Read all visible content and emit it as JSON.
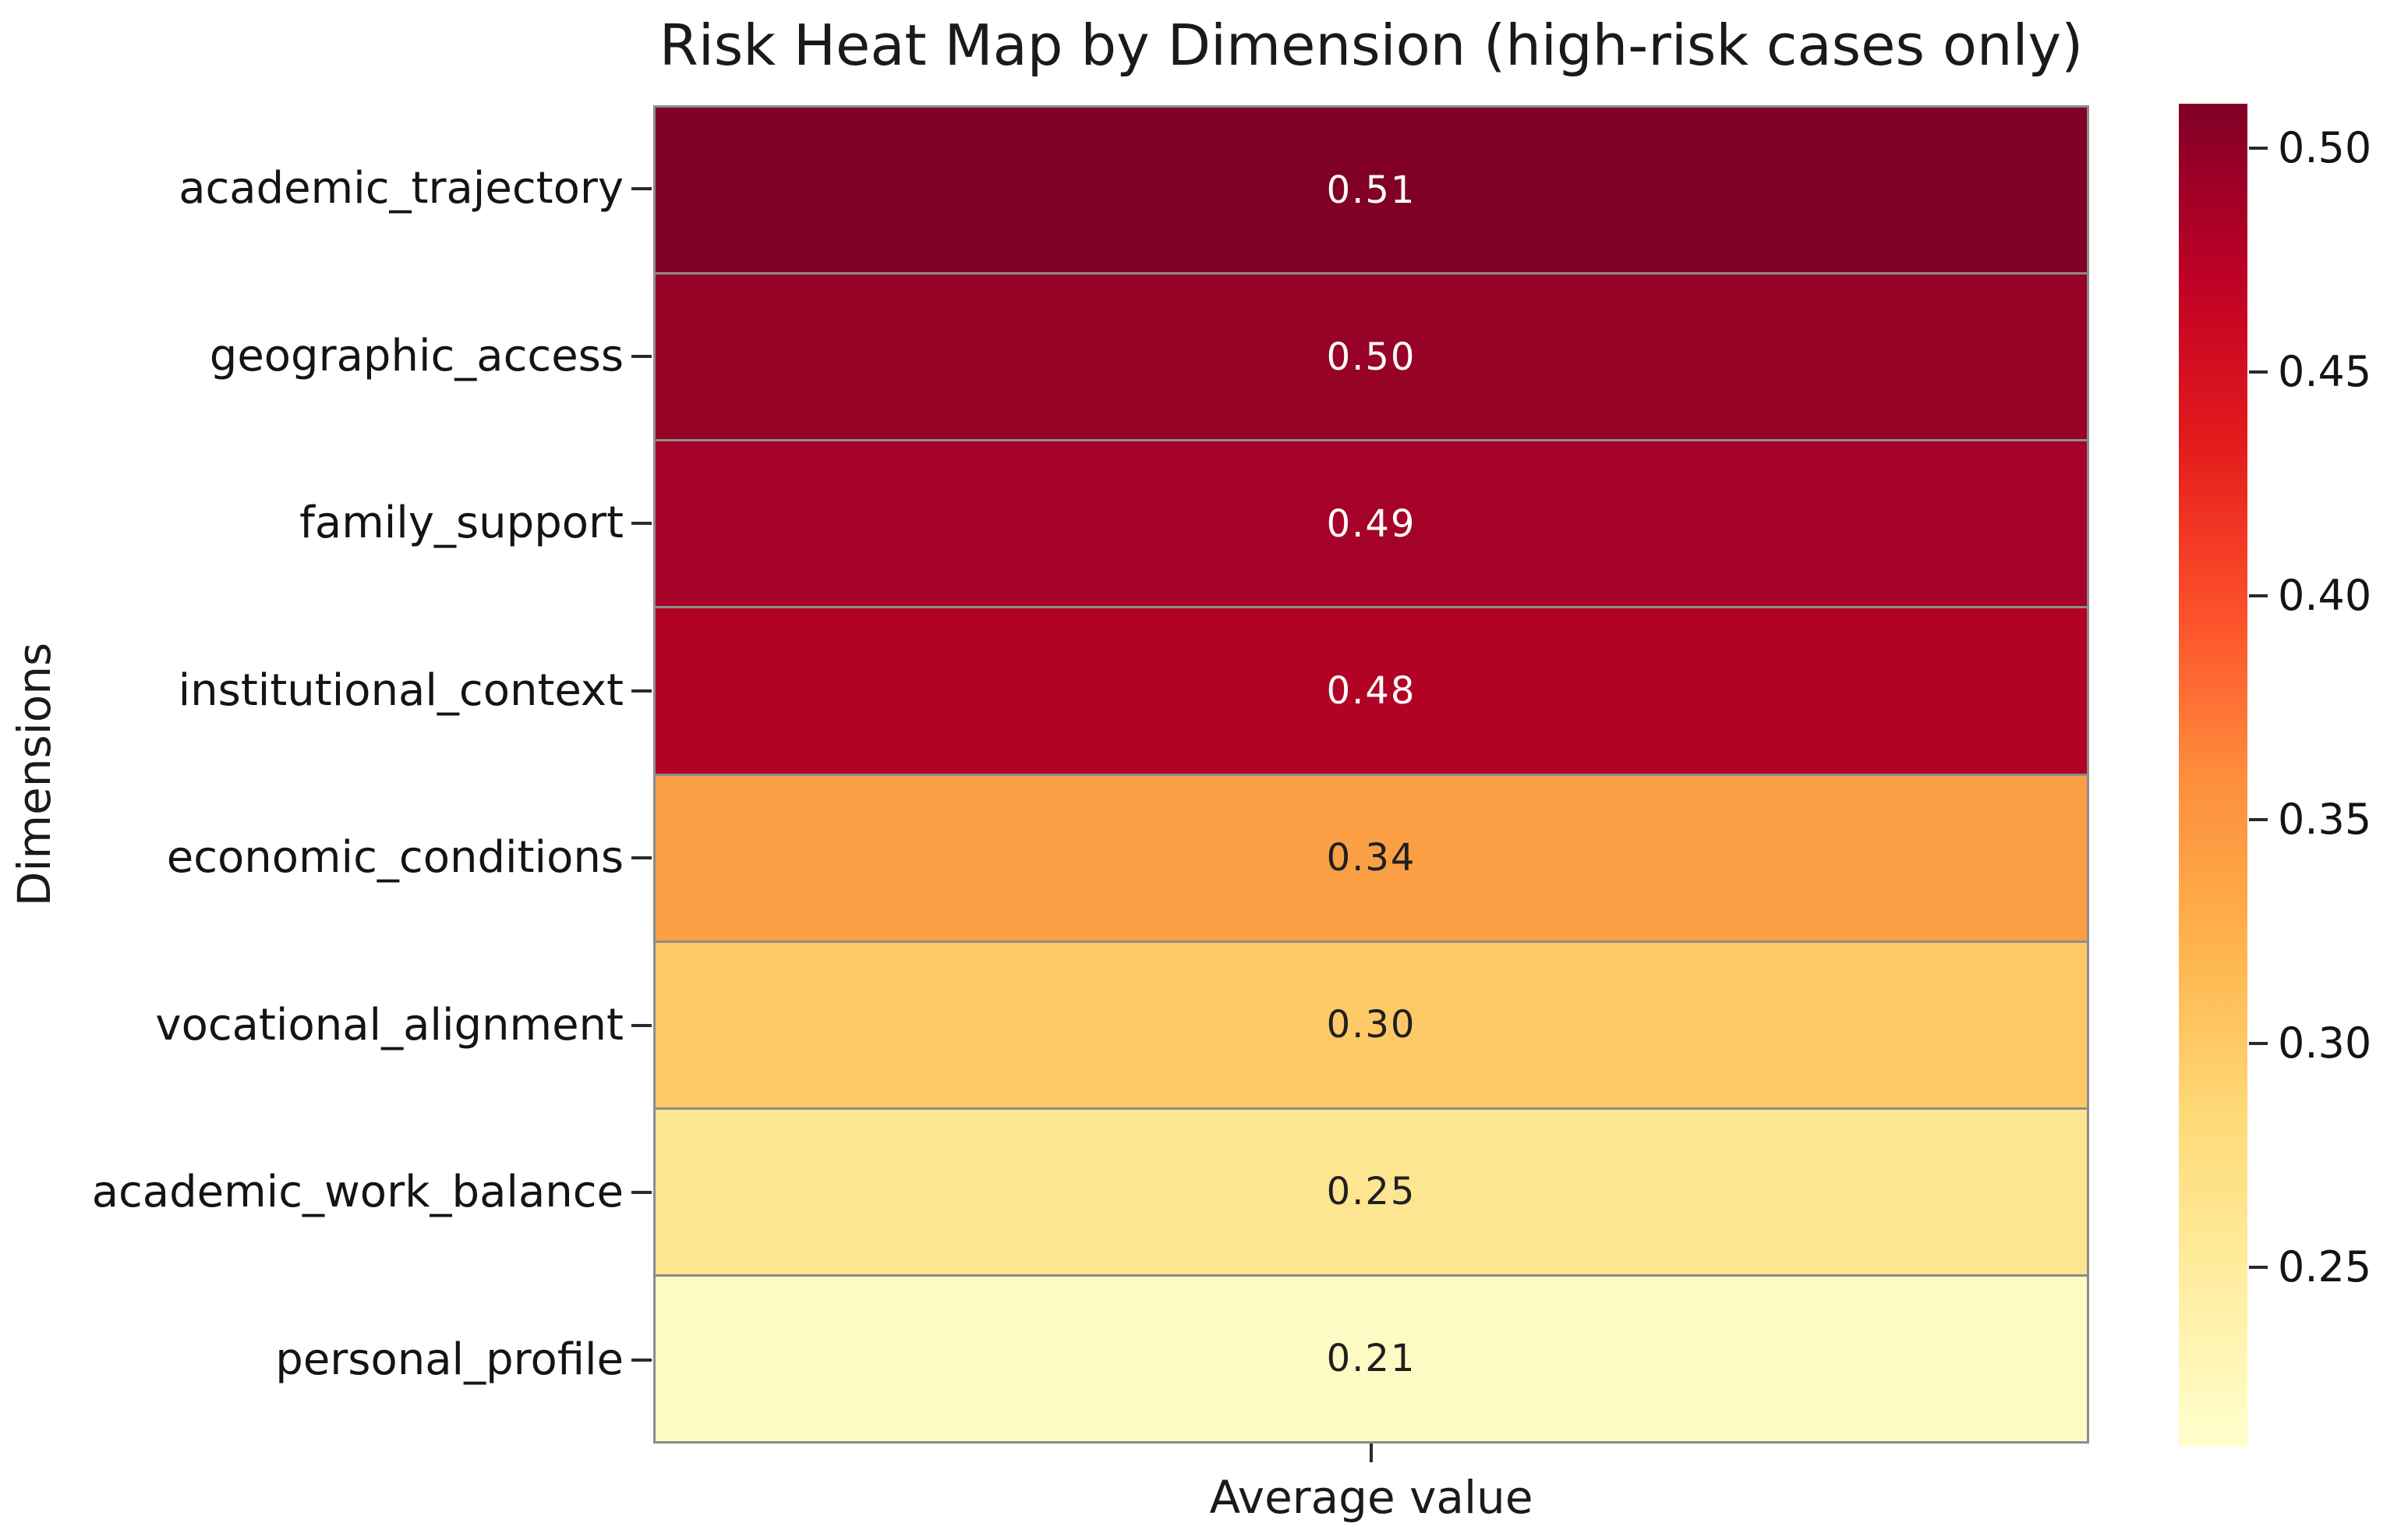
{
  "title": "Risk Heat Map by Dimension (high-risk cases only)",
  "xlabel": "Average value",
  "ylabel": "Dimensions",
  "chart_data": {
    "type": "heatmap",
    "title": "Risk Heat Map by Dimension (high-risk cases only)",
    "xlabel": "Average value",
    "ylabel": "Dimensions",
    "columns": [
      "Average value"
    ],
    "categories": [
      "academic_trajectory",
      "geographic_access",
      "family_support",
      "institutional_context",
      "economic_conditions",
      "vocational_alignment",
      "academic_work_balance",
      "personal_profile"
    ],
    "values": [
      0.51,
      0.5,
      0.49,
      0.48,
      0.34,
      0.3,
      0.25,
      0.21
    ],
    "rows": [
      {
        "label": "academic_trajectory",
        "value": 0.51,
        "display": "0.51",
        "bg": "#800026",
        "fg": "#ffffff"
      },
      {
        "label": "geographic_access",
        "value": 0.5,
        "display": "0.50",
        "bg": "#970327",
        "fg": "#ffffff"
      },
      {
        "label": "family_support",
        "value": 0.49,
        "display": "0.49",
        "bg": "#a40228",
        "fg": "#ffffff"
      },
      {
        "label": "institutional_context",
        "value": 0.48,
        "display": "0.48",
        "bg": "#b20325",
        "fg": "#ffffff"
      },
      {
        "label": "economic_conditions",
        "value": 0.34,
        "display": "0.34",
        "bg": "#fb9f44",
        "fg": "#1f1f1f"
      },
      {
        "label": "vocational_alignment",
        "value": 0.3,
        "display": "0.30",
        "bg": "#fdc967",
        "fg": "#1f1f1f"
      },
      {
        "label": "academic_work_balance",
        "value": 0.25,
        "display": "0.25",
        "bg": "#fde591",
        "fg": "#1f1f1f"
      },
      {
        "label": "personal_profile",
        "value": 0.21,
        "display": "0.21",
        "bg": "#fdfac4",
        "fg": "#1f1f1f"
      }
    ],
    "colorbar": {
      "colormap": "YlOrRd",
      "vmin": 0.21,
      "vmax": 0.51,
      "ticks": [
        {
          "value": 0.5,
          "label": "0.50"
        },
        {
          "value": 0.45,
          "label": "0.45"
        },
        {
          "value": 0.4,
          "label": "0.40"
        },
        {
          "value": 0.35,
          "label": "0.35"
        },
        {
          "value": 0.3,
          "label": "0.30"
        },
        {
          "value": 0.25,
          "label": "0.25"
        }
      ],
      "legend_position": "right"
    },
    "grid": false,
    "annotated": true
  }
}
